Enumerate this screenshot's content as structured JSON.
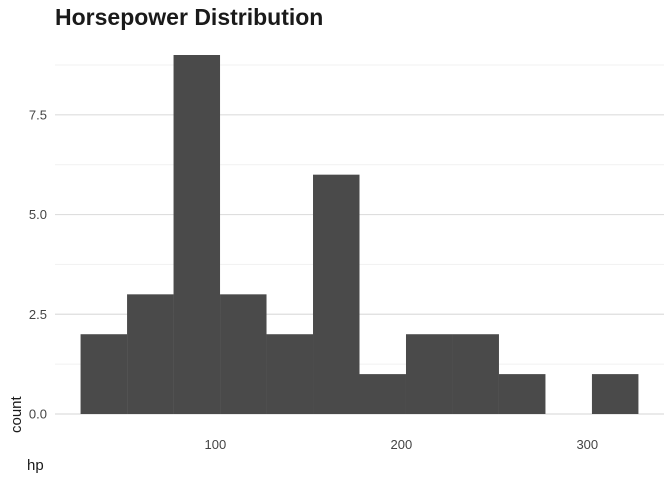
{
  "chart_data": {
    "type": "bar",
    "title": "Horsepower Distribution",
    "xlabel": "hp",
    "ylabel": "count",
    "bin_width": 25,
    "bins": [
      {
        "x_start": 27.5,
        "x_end": 52.5,
        "count": 2
      },
      {
        "x_start": 52.5,
        "x_end": 77.5,
        "count": 3
      },
      {
        "x_start": 77.5,
        "x_end": 102.5,
        "count": 9
      },
      {
        "x_start": 102.5,
        "x_end": 127.5,
        "count": 3
      },
      {
        "x_start": 127.5,
        "x_end": 152.5,
        "count": 2
      },
      {
        "x_start": 152.5,
        "x_end": 177.5,
        "count": 6
      },
      {
        "x_start": 177.5,
        "x_end": 202.5,
        "count": 1
      },
      {
        "x_start": 202.5,
        "x_end": 227.5,
        "count": 2
      },
      {
        "x_start": 227.5,
        "x_end": 252.5,
        "count": 2
      },
      {
        "x_start": 252.5,
        "x_end": 277.5,
        "count": 1
      },
      {
        "x_start": 277.5,
        "x_end": 302.5,
        "count": 0
      },
      {
        "x_start": 302.5,
        "x_end": 327.5,
        "count": 1
      }
    ],
    "x_ticks": [
      100,
      200,
      300
    ],
    "x_tick_labels": [
      "100",
      "200",
      "300"
    ],
    "y_ticks": [
      0,
      2.5,
      5,
      7.5
    ],
    "y_tick_labels": [
      "0.0",
      "2.5",
      "5.0",
      "7.5"
    ],
    "xlim": [
      13.75,
      341.25
    ],
    "ylim": [
      0,
      9
    ],
    "grid": true,
    "bar_color": "#4a4a4a"
  }
}
